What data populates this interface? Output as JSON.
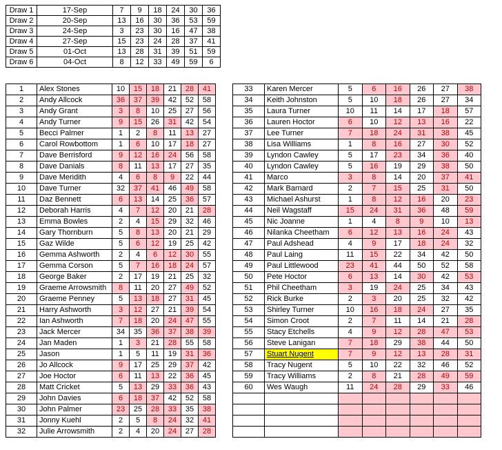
{
  "colors": {
    "hit_bg": "#FFC7CE",
    "hit_text": "#C00000",
    "name_highlight_bg": "#FFFF00",
    "grid": "#000000"
  },
  "draws_table": {
    "rows": [
      {
        "label": "Draw 1",
        "date": "17-Sep",
        "numbers": [
          7,
          9,
          18,
          24,
          30,
          36
        ]
      },
      {
        "label": "Draw 2",
        "date": "20-Sep",
        "numbers": [
          13,
          16,
          30,
          36,
          53,
          59
        ]
      },
      {
        "label": "Draw 3",
        "date": "24-Sep",
        "numbers": [
          3,
          23,
          30,
          16,
          47,
          38
        ]
      },
      {
        "label": "Draw 4",
        "date": "27-Sep",
        "numbers": [
          15,
          23,
          24,
          28,
          37,
          41
        ]
      },
      {
        "label": "Draw 5",
        "date": "01-Oct",
        "numbers": [
          13,
          28,
          31,
          39,
          51,
          59
        ]
      },
      {
        "label": "Draw 6",
        "date": "04-Oct",
        "numbers": [
          8,
          12,
          33,
          49,
          59,
          6
        ]
      }
    ]
  },
  "players_left": [
    {
      "rank": 1,
      "name": "Alex Stones",
      "numbers": [
        10,
        15,
        18,
        21,
        28,
        41
      ],
      "hits": [
        0,
        1,
        1,
        0,
        1,
        1
      ]
    },
    {
      "rank": 2,
      "name": "Andy Allcock",
      "numbers": [
        36,
        37,
        39,
        42,
        52,
        58
      ],
      "hits": [
        1,
        1,
        1,
        0,
        0,
        0
      ]
    },
    {
      "rank": 3,
      "name": "Andy Grant",
      "numbers": [
        3,
        8,
        10,
        25,
        27,
        56
      ],
      "hits": [
        1,
        1,
        0,
        0,
        0,
        0
      ]
    },
    {
      "rank": 4,
      "name": "Andy Turner",
      "numbers": [
        9,
        15,
        26,
        31,
        42,
        54
      ],
      "hits": [
        1,
        1,
        0,
        1,
        0,
        0
      ]
    },
    {
      "rank": 5,
      "name": "Becci Palmer",
      "numbers": [
        1,
        2,
        8,
        11,
        13,
        27
      ],
      "hits": [
        0,
        0,
        1,
        0,
        1,
        0
      ]
    },
    {
      "rank": 6,
      "name": "Carol Rowbottom",
      "numbers": [
        1,
        6,
        10,
        17,
        18,
        27
      ],
      "hits": [
        0,
        1,
        0,
        0,
        1,
        0
      ]
    },
    {
      "rank": 7,
      "name": "Dave Berrisford",
      "numbers": [
        9,
        12,
        16,
        24,
        56,
        58
      ],
      "hits": [
        1,
        1,
        1,
        1,
        0,
        0
      ]
    },
    {
      "rank": 8,
      "name": "Dave Danials",
      "numbers": [
        8,
        11,
        13,
        17,
        27,
        35
      ],
      "hits": [
        1,
        0,
        1,
        0,
        0,
        0
      ]
    },
    {
      "rank": 9,
      "name": "Dave Meridith",
      "numbers": [
        4,
        6,
        8,
        9,
        22,
        44
      ],
      "hits": [
        0,
        1,
        1,
        1,
        0,
        0
      ]
    },
    {
      "rank": 10,
      "name": "Dave Turner",
      "numbers": [
        32,
        37,
        41,
        46,
        49,
        58
      ],
      "hits": [
        0,
        1,
        1,
        0,
        1,
        0
      ]
    },
    {
      "rank": 11,
      "name": "Daz Bennett",
      "numbers": [
        6,
        13,
        14,
        25,
        36,
        57
      ],
      "hits": [
        1,
        1,
        0,
        0,
        1,
        0
      ]
    },
    {
      "rank": 12,
      "name": "Deborah Harris",
      "numbers": [
        4,
        7,
        12,
        20,
        21,
        28
      ],
      "hits": [
        0,
        1,
        1,
        0,
        0,
        1
      ]
    },
    {
      "rank": 13,
      "name": "Emma Bowles",
      "numbers": [
        2,
        4,
        15,
        29,
        32,
        46
      ],
      "hits": [
        0,
        0,
        1,
        0,
        0,
        0
      ]
    },
    {
      "rank": 14,
      "name": "Gary Thornburn",
      "numbers": [
        5,
        8,
        13,
        20,
        21,
        29
      ],
      "hits": [
        0,
        1,
        1,
        0,
        0,
        0
      ]
    },
    {
      "rank": 15,
      "name": "Gaz Wilde",
      "numbers": [
        5,
        6,
        12,
        19,
        25,
        42
      ],
      "hits": [
        0,
        1,
        1,
        0,
        0,
        0
      ]
    },
    {
      "rank": 16,
      "name": "Gemma Ashworth",
      "numbers": [
        2,
        4,
        6,
        12,
        30,
        55
      ],
      "hits": [
        0,
        0,
        1,
        1,
        1,
        0
      ]
    },
    {
      "rank": 17,
      "name": "Gemma Corson",
      "numbers": [
        5,
        7,
        16,
        18,
        24,
        57
      ],
      "hits": [
        0,
        1,
        1,
        1,
        1,
        0
      ]
    },
    {
      "rank": 18,
      "name": "George Baker",
      "numbers": [
        2,
        17,
        19,
        21,
        25,
        32
      ],
      "hits": [
        0,
        0,
        0,
        0,
        0,
        0
      ]
    },
    {
      "rank": 19,
      "name": "Graeme Arrowsmith",
      "numbers": [
        8,
        11,
        20,
        27,
        49,
        52
      ],
      "hits": [
        1,
        0,
        0,
        0,
        1,
        0
      ]
    },
    {
      "rank": 20,
      "name": "Graeme Penney",
      "numbers": [
        5,
        13,
        18,
        27,
        31,
        45
      ],
      "hits": [
        0,
        1,
        1,
        0,
        1,
        0
      ]
    },
    {
      "rank": 21,
      "name": "Harry Ashworth",
      "numbers": [
        3,
        12,
        27,
        21,
        39,
        54
      ],
      "hits": [
        1,
        1,
        0,
        0,
        1,
        0
      ]
    },
    {
      "rank": 22,
      "name": "Ian Ashworth",
      "numbers": [
        7,
        18,
        20,
        24,
        47,
        55
      ],
      "hits": [
        1,
        1,
        0,
        1,
        1,
        0
      ]
    },
    {
      "rank": 23,
      "name": "Jack Mercer",
      "numbers": [
        34,
        35,
        36,
        37,
        38,
        39
      ],
      "hits": [
        0,
        0,
        1,
        1,
        1,
        1
      ]
    },
    {
      "rank": 24,
      "name": "Jan Maden",
      "numbers": [
        1,
        3,
        21,
        28,
        55,
        58
      ],
      "hits": [
        0,
        1,
        0,
        1,
        0,
        0
      ]
    },
    {
      "rank": 25,
      "name": "Jason",
      "numbers": [
        1,
        5,
        11,
        19,
        31,
        36
      ],
      "hits": [
        0,
        0,
        0,
        0,
        1,
        1
      ]
    },
    {
      "rank": 26,
      "name": "Jo Allcock",
      "numbers": [
        9,
        17,
        25,
        29,
        37,
        42
      ],
      "hits": [
        1,
        0,
        0,
        0,
        1,
        0
      ]
    },
    {
      "rank": 27,
      "name": "Joe Hoctor",
      "numbers": [
        6,
        11,
        13,
        22,
        36,
        45
      ],
      "hits": [
        1,
        0,
        1,
        0,
        1,
        0
      ]
    },
    {
      "rank": 28,
      "name": "Matt Cricket",
      "numbers": [
        5,
        13,
        29,
        33,
        36,
        43
      ],
      "hits": [
        0,
        1,
        0,
        1,
        1,
        0
      ]
    },
    {
      "rank": 29,
      "name": "John Davies",
      "numbers": [
        6,
        18,
        37,
        42,
        52,
        58
      ],
      "hits": [
        1,
        1,
        1,
        0,
        0,
        0
      ]
    },
    {
      "rank": 30,
      "name": "John Palmer",
      "numbers": [
        23,
        25,
        28,
        33,
        35,
        38
      ],
      "hits": [
        1,
        0,
        1,
        1,
        0,
        1
      ]
    },
    {
      "rank": 31,
      "name": "Jonny Kuehl",
      "numbers": [
        2,
        5,
        8,
        24,
        32,
        41
      ],
      "hits": [
        0,
        0,
        1,
        1,
        0,
        1
      ]
    },
    {
      "rank": 32,
      "name": "Julie Arrowsmith",
      "numbers": [
        2,
        4,
        20,
        24,
        27,
        28
      ],
      "hits": [
        0,
        0,
        0,
        1,
        0,
        1
      ]
    }
  ],
  "players_right": [
    {
      "rank": 33,
      "name": "Karen Mercer",
      "numbers": [
        5,
        6,
        16,
        26,
        27,
        38
      ],
      "hits": [
        0,
        1,
        1,
        0,
        0,
        1
      ]
    },
    {
      "rank": 34,
      "name": "Keith Johnston",
      "numbers": [
        5,
        10,
        18,
        26,
        27,
        34
      ],
      "hits": [
        0,
        0,
        1,
        0,
        0,
        0
      ]
    },
    {
      "rank": 35,
      "name": "Laura Turner",
      "numbers": [
        10,
        11,
        14,
        17,
        18,
        57
      ],
      "hits": [
        0,
        0,
        0,
        0,
        1,
        0
      ]
    },
    {
      "rank": 36,
      "name": "Lauren Hoctor",
      "numbers": [
        6,
        10,
        12,
        13,
        16,
        22
      ],
      "hits": [
        1,
        0,
        1,
        1,
        1,
        0
      ]
    },
    {
      "rank": 37,
      "name": "Lee Turner",
      "numbers": [
        7,
        18,
        24,
        31,
        38,
        45
      ],
      "hits": [
        1,
        1,
        1,
        1,
        1,
        0
      ]
    },
    {
      "rank": 38,
      "name": "Lisa Williams",
      "numbers": [
        1,
        8,
        16,
        27,
        30,
        52
      ],
      "hits": [
        0,
        1,
        1,
        0,
        1,
        0
      ]
    },
    {
      "rank": 39,
      "name": "Lyndon Cawley",
      "numbers": [
        5,
        17,
        23,
        34,
        36,
        40
      ],
      "hits": [
        0,
        0,
        1,
        0,
        1,
        0
      ]
    },
    {
      "rank": 40,
      "name": "Lyndon Cawley",
      "numbers": [
        5,
        16,
        19,
        29,
        38,
        50
      ],
      "hits": [
        0,
        1,
        0,
        0,
        1,
        0
      ]
    },
    {
      "rank": 41,
      "name": "Marco",
      "numbers": [
        3,
        8,
        14,
        20,
        37,
        41
      ],
      "hits": [
        1,
        1,
        0,
        0,
        1,
        1
      ]
    },
    {
      "rank": 42,
      "name": "Mark Barnard",
      "numbers": [
        2,
        7,
        15,
        25,
        31,
        50
      ],
      "hits": [
        0,
        1,
        1,
        0,
        1,
        0
      ]
    },
    {
      "rank": 43,
      "name": "Michael Ashurst",
      "numbers": [
        1,
        8,
        12,
        16,
        20,
        23
      ],
      "hits": [
        0,
        1,
        1,
        1,
        0,
        1
      ]
    },
    {
      "rank": 44,
      "name": "Neil Wagstaff",
      "numbers": [
        15,
        24,
        31,
        36,
        48,
        59
      ],
      "hits": [
        1,
        1,
        1,
        1,
        0,
        1
      ]
    },
    {
      "rank": 45,
      "name": "Nic Joanne",
      "numbers": [
        1,
        4,
        8,
        9,
        10,
        13
      ],
      "hits": [
        0,
        0,
        1,
        1,
        0,
        1
      ]
    },
    {
      "rank": 46,
      "name": "Nilanka Cheetham",
      "numbers": [
        6,
        12,
        13,
        16,
        24,
        43
      ],
      "hits": [
        1,
        1,
        1,
        1,
        1,
        0
      ]
    },
    {
      "rank": 47,
      "name": "Paul Adshead",
      "numbers": [
        4,
        9,
        17,
        18,
        24,
        32
      ],
      "hits": [
        0,
        1,
        0,
        1,
        1,
        0
      ]
    },
    {
      "rank": 48,
      "name": "Paul Laing",
      "numbers": [
        11,
        15,
        22,
        34,
        42,
        50
      ],
      "hits": [
        0,
        1,
        0,
        0,
        0,
        0
      ]
    },
    {
      "rank": 49,
      "name": "Paul Littlewood",
      "numbers": [
        23,
        41,
        44,
        50,
        52,
        58
      ],
      "hits": [
        1,
        1,
        0,
        0,
        0,
        0
      ]
    },
    {
      "rank": 50,
      "name": "Pete Hoctor",
      "numbers": [
        6,
        13,
        14,
        30,
        42,
        53
      ],
      "hits": [
        1,
        1,
        0,
        1,
        0,
        1
      ]
    },
    {
      "rank": 51,
      "name": "Phil Cheetham",
      "numbers": [
        3,
        19,
        24,
        25,
        34,
        43
      ],
      "hits": [
        1,
        0,
        1,
        0,
        0,
        0
      ]
    },
    {
      "rank": 52,
      "name": "Rick Burke",
      "numbers": [
        2,
        3,
        20,
        25,
        32,
        42
      ],
      "hits": [
        0,
        1,
        0,
        0,
        0,
        0
      ]
    },
    {
      "rank": 53,
      "name": "Shirley Turner",
      "numbers": [
        10,
        16,
        18,
        24,
        27,
        35
      ],
      "hits": [
        0,
        1,
        1,
        1,
        0,
        0
      ]
    },
    {
      "rank": 54,
      "name": "Simon Croot",
      "numbers": [
        2,
        7,
        11,
        14,
        21,
        28
      ],
      "hits": [
        0,
        1,
        0,
        0,
        0,
        1
      ]
    },
    {
      "rank": 55,
      "name": "Stacy Etchells",
      "numbers": [
        4,
        9,
        12,
        28,
        47,
        53
      ],
      "hits": [
        0,
        1,
        1,
        1,
        1,
        1
      ]
    },
    {
      "rank": 56,
      "name": "Steve Lanigan",
      "numbers": [
        7,
        18,
        29,
        38,
        44,
        50
      ],
      "hits": [
        1,
        1,
        0,
        1,
        0,
        0
      ]
    },
    {
      "rank": 57,
      "name": "Stuart Nugent",
      "numbers": [
        7,
        9,
        12,
        13,
        28,
        31
      ],
      "hits": [
        1,
        1,
        1,
        1,
        1,
        1
      ],
      "highlight": true
    },
    {
      "rank": 58,
      "name": "Tracy Nugent",
      "numbers": [
        5,
        10,
        22,
        32,
        46,
        52
      ],
      "hits": [
        0,
        0,
        0,
        0,
        0,
        0
      ]
    },
    {
      "rank": 59,
      "name": "Tracy Williams",
      "numbers": [
        2,
        8,
        21,
        28,
        49,
        59
      ],
      "hits": [
        0,
        1,
        0,
        1,
        1,
        1
      ]
    },
    {
      "rank": 60,
      "name": "Wes Waugh",
      "numbers": [
        11,
        24,
        28,
        29,
        33,
        46
      ],
      "hits": [
        0,
        1,
        1,
        0,
        1,
        0
      ]
    }
  ],
  "right_table_empty_rows": 4
}
